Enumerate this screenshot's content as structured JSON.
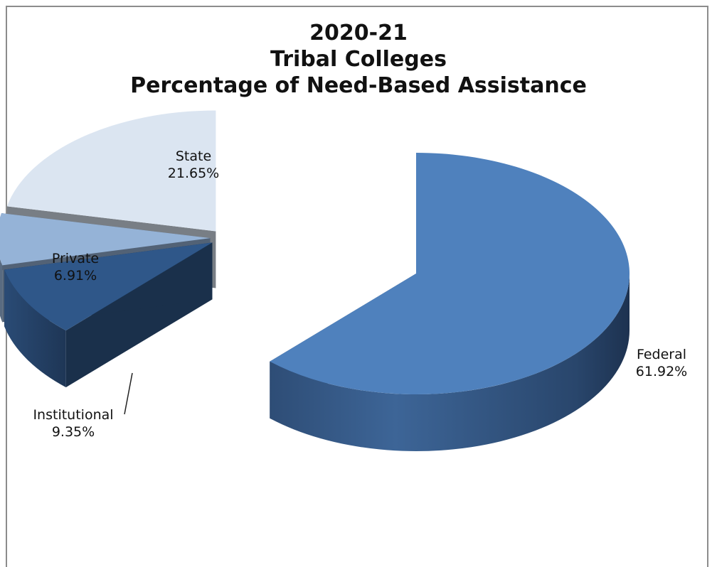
{
  "chart_data": {
    "type": "pie",
    "style": "3d-exploded",
    "title": [
      "2020-21",
      "Tribal Colleges",
      "Percentage of Need-Based Assistance"
    ],
    "slices": [
      {
        "name": "Federal",
        "value": 61.92,
        "label": "61.92%",
        "color": "#4f81bd"
      },
      {
        "name": "Institutional",
        "value": 9.35,
        "label": "9.35%",
        "color": "#2f5789"
      },
      {
        "name": "Private",
        "value": 6.91,
        "label": "6.91%",
        "color": "#95b3d7"
      },
      {
        "name": "State",
        "value": 21.65,
        "label": "21.65%",
        "color": "#dbe5f1"
      }
    ],
    "legend": "none",
    "data_labels": "outside"
  }
}
